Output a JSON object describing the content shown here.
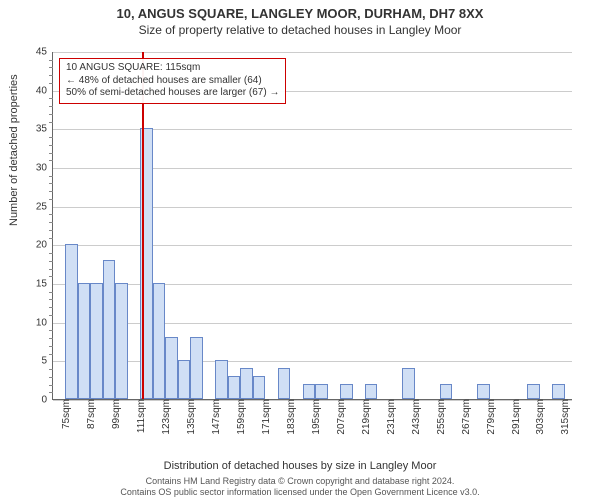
{
  "title": "10, ANGUS SQUARE, LANGLEY MOOR, DURHAM, DH7 8XX",
  "subtitle": "Size of property relative to detached houses in Langley Moor",
  "ylabel": "Number of detached properties",
  "xlabel": "Distribution of detached houses by size in Langley Moor",
  "footer1": "Contains HM Land Registry data © Crown copyright and database right 2024.",
  "footer2": "Contains OS public sector information licensed under the Open Government Licence v3.0.",
  "chart": {
    "type": "histogram",
    "ylim": [
      0,
      45
    ],
    "ytick_step": 5,
    "background_color": "#ffffff",
    "grid_color": "#cccccc",
    "bar_fill": "#d0dff5",
    "bar_stroke": "#6888c8",
    "marker_color": "#cc0000",
    "marker_x": 115,
    "xmin": 72,
    "xmax": 322,
    "xtick_start": 75,
    "xtick_step": 12,
    "xtick_count": 21,
    "xtick_suffix": "sqm",
    "bin_width": 6,
    "bins": [
      {
        "x": 72,
        "count": 0
      },
      {
        "x": 78,
        "count": 20
      },
      {
        "x": 84,
        "count": 15
      },
      {
        "x": 90,
        "count": 15
      },
      {
        "x": 96,
        "count": 18
      },
      {
        "x": 102,
        "count": 15
      },
      {
        "x": 108,
        "count": 0
      },
      {
        "x": 114,
        "count": 35
      },
      {
        "x": 120,
        "count": 15
      },
      {
        "x": 126,
        "count": 8
      },
      {
        "x": 132,
        "count": 5
      },
      {
        "x": 138,
        "count": 8
      },
      {
        "x": 144,
        "count": 0
      },
      {
        "x": 150,
        "count": 5
      },
      {
        "x": 156,
        "count": 3
      },
      {
        "x": 162,
        "count": 4
      },
      {
        "x": 168,
        "count": 3
      },
      {
        "x": 174,
        "count": 0
      },
      {
        "x": 180,
        "count": 4
      },
      {
        "x": 186,
        "count": 0
      },
      {
        "x": 192,
        "count": 2
      },
      {
        "x": 198,
        "count": 2
      },
      {
        "x": 204,
        "count": 0
      },
      {
        "x": 210,
        "count": 2
      },
      {
        "x": 216,
        "count": 0
      },
      {
        "x": 222,
        "count": 2
      },
      {
        "x": 228,
        "count": 0
      },
      {
        "x": 234,
        "count": 0
      },
      {
        "x": 240,
        "count": 4
      },
      {
        "x": 246,
        "count": 0
      },
      {
        "x": 252,
        "count": 0
      },
      {
        "x": 258,
        "count": 2
      },
      {
        "x": 264,
        "count": 0
      },
      {
        "x": 270,
        "count": 0
      },
      {
        "x": 276,
        "count": 2
      },
      {
        "x": 282,
        "count": 0
      },
      {
        "x": 288,
        "count": 0
      },
      {
        "x": 294,
        "count": 0
      },
      {
        "x": 300,
        "count": 2
      },
      {
        "x": 306,
        "count": 0
      },
      {
        "x": 312,
        "count": 2
      }
    ],
    "info_box": {
      "line1": "10 ANGUS SQUARE: 115sqm",
      "line2": "← 48% of detached houses are smaller (64)",
      "line3": "50% of semi-detached houses are larger (67) →"
    }
  }
}
